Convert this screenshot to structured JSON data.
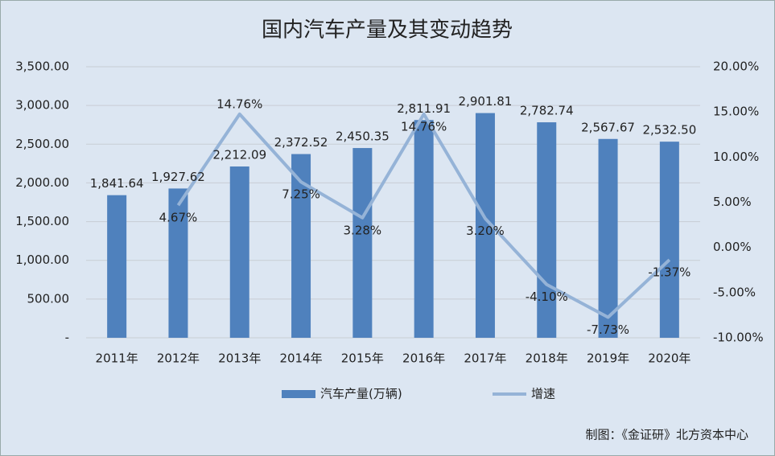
{
  "chart_data": {
    "type": "bar_line",
    "title": "国内汽车产量及其变动趋势",
    "categories": [
      "2011年",
      "2012年",
      "2013年",
      "2014年",
      "2015年",
      "2016年",
      "2017年",
      "2018年",
      "2019年",
      "2020年"
    ],
    "series": [
      {
        "name": "汽车产量(万辆)",
        "type": "bar",
        "color": "#4f81bd",
        "values": [
          1841.64,
          1927.62,
          2212.09,
          2372.52,
          2450.35,
          2811.91,
          2901.81,
          2782.74,
          2567.67,
          2532.5
        ],
        "value_labels": [
          "1,841.64",
          "1,927.62",
          "2,212.09",
          "2,372.52",
          "2,450.35",
          "2,811.91",
          "2,901.81",
          "2,782.74",
          "2,567.67",
          "2,532.50"
        ]
      },
      {
        "name": "增速",
        "type": "line",
        "axis": "y2",
        "color": "#95b3d7",
        "values": [
          null,
          4.67,
          14.76,
          7.25,
          3.28,
          14.76,
          3.2,
          -4.1,
          -7.73,
          -1.37
        ],
        "value_labels": [
          null,
          "4.67%",
          "14.76%",
          "7.25%",
          "3.28%",
          "14.76%",
          "3.20%",
          "-4.10%",
          "-7.73%",
          "-1.37%"
        ]
      }
    ],
    "ylim": [
      0,
      3500
    ],
    "yticks": [
      {
        "value": 0,
        "label": "-"
      },
      {
        "value": 500,
        "label": "500.00"
      },
      {
        "value": 1000,
        "label": "1,000.00"
      },
      {
        "value": 1500,
        "label": "1,500.00"
      },
      {
        "value": 2000,
        "label": "2,000.00"
      },
      {
        "value": 2500,
        "label": "2,500.00"
      },
      {
        "value": 3000,
        "label": "3,000.00"
      },
      {
        "value": 3500,
        "label": "3,500.00"
      }
    ],
    "y2lim": [
      -10,
      20
    ],
    "y2ticks": [
      {
        "value": -10,
        "label": "-10.00%"
      },
      {
        "value": -5,
        "label": "-5.00%"
      },
      {
        "value": 0,
        "label": "0.00%"
      },
      {
        "value": 5,
        "label": "5.00%"
      },
      {
        "value": 10,
        "label": "10.00%"
      },
      {
        "value": 15,
        "label": "15.00%"
      },
      {
        "value": 20,
        "label": "20.00%"
      }
    ],
    "grid": true,
    "legend": "bottom",
    "note": "制图：《金证研》北方资本中心"
  }
}
